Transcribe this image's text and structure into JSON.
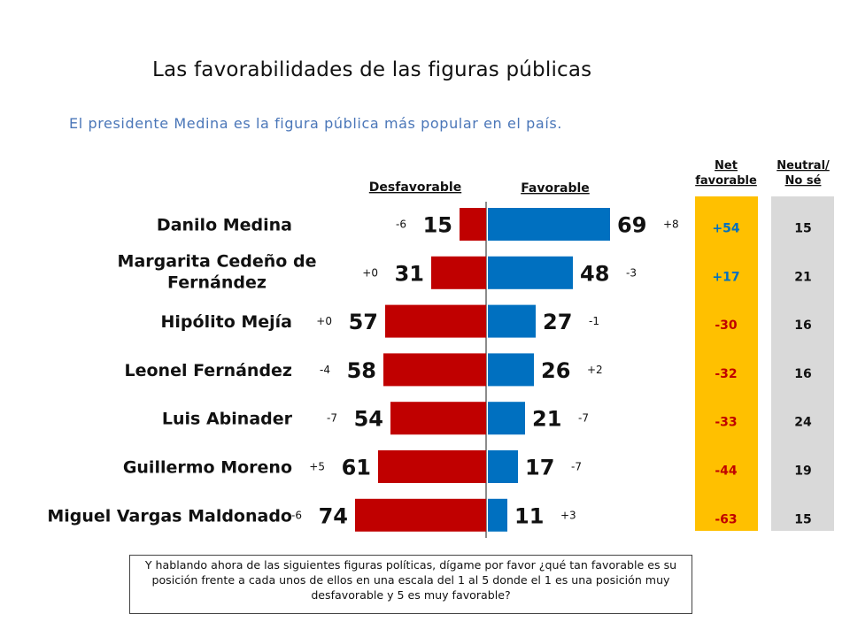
{
  "title": "Las favorabilidades de las figuras públicas",
  "subtitle": "El presidente Medina es la figura pública más popular en el país.",
  "headers": {
    "unfavorable": "Desfavorable",
    "favorable": "Favorable",
    "net": [
      "Net",
      "favorable"
    ],
    "neutral": [
      "Neutral/",
      "No sé"
    ]
  },
  "colors": {
    "unfavorable_bar": "#c00000",
    "favorable_bar": "#0070c0",
    "net_panel": "#ffc000",
    "net_positive_text": "#0070c0",
    "net_negative_text": "#c00000",
    "neutral_panel": "#d9d9d9"
  },
  "chart_data": {
    "type": "bar",
    "orientation": "horizontal-diverging",
    "title": "Las favorabilidades de las figuras públicas",
    "subtitle": "El presidente Medina es la figura pública más popular en el país.",
    "categories": [
      [
        "Danilo Medina"
      ],
      [
        "Margarita Cedeño de",
        "Fernández"
      ],
      [
        "Hipólito Mejía"
      ],
      [
        "Leonel Fernández"
      ],
      [
        "Luis Abinader"
      ],
      [
        "Guillermo Moreno"
      ],
      [
        "Miguel Vargas Maldonado"
      ]
    ],
    "series": [
      {
        "name": "Desfavorable",
        "values": [
          15,
          31,
          57,
          58,
          54,
          61,
          74
        ],
        "change": [
          "-6",
          "+0",
          "+0",
          "-4",
          "-7",
          "+5",
          "-6"
        ]
      },
      {
        "name": "Favorable",
        "values": [
          69,
          48,
          27,
          26,
          21,
          17,
          11
        ],
        "change": [
          "+8",
          "-3",
          "-1",
          "+2",
          "-7",
          "-7",
          "+3"
        ]
      }
    ],
    "net_favorable": [
      "+54",
      "+17",
      "-30",
      "-32",
      "-33",
      "-44",
      "-63"
    ],
    "neutral_no_se": [
      "15",
      "21",
      "16",
      "16",
      "24",
      "19",
      "15"
    ]
  },
  "footnote": "Y hablando ahora de las siguientes figuras políticas, dígame por favor ¿qué tan favorable es su posición frente a cada unos de ellos en una escala del 1 al 5 donde el 1 es una posición muy desfavorable y 5 es muy favorable?"
}
